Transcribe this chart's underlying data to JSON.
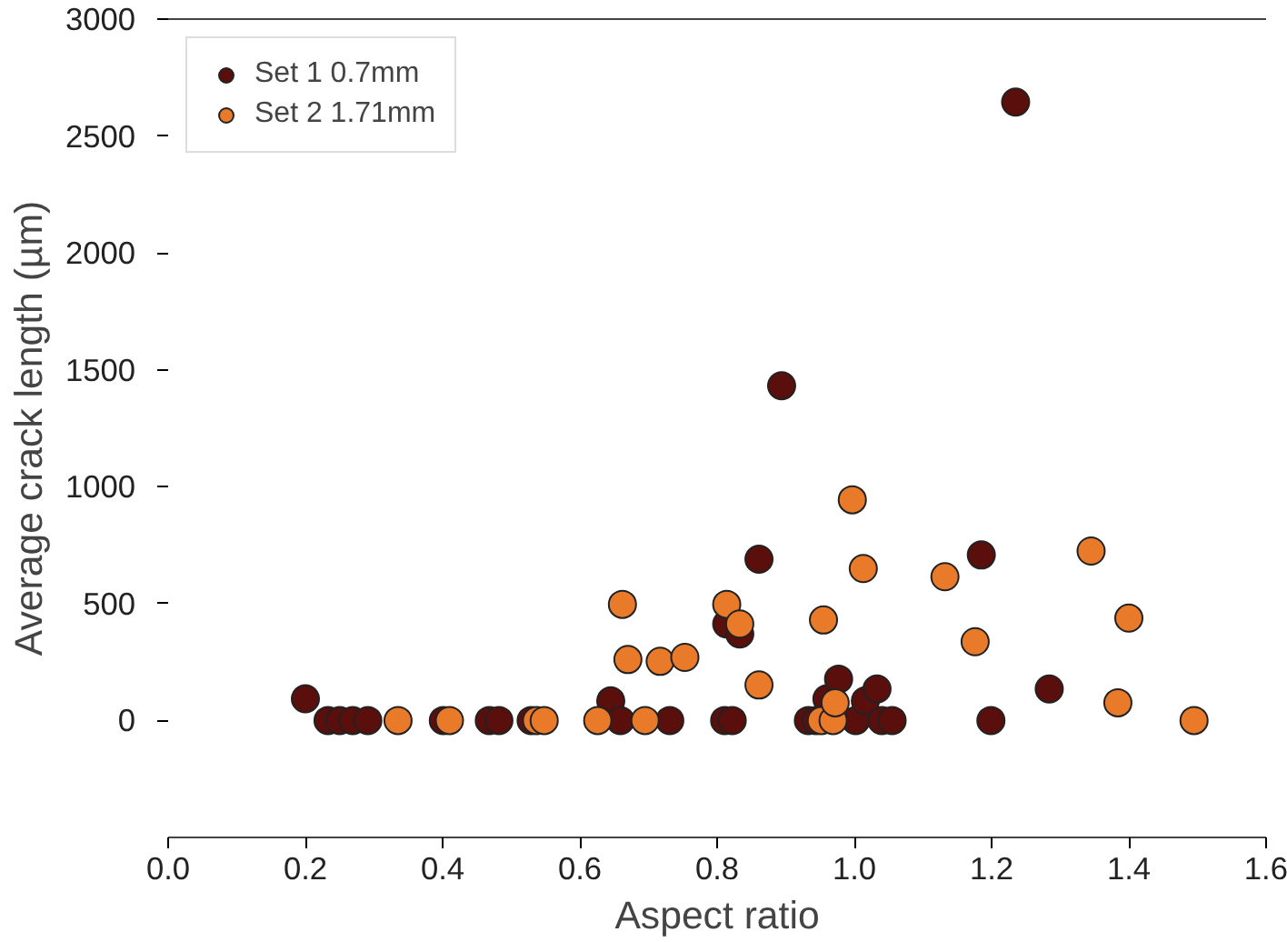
{
  "chart_data": {
    "type": "scatter",
    "xlabel": "Aspect ratio",
    "ylabel": "Average crack length (µm)",
    "xlim": [
      0,
      1.6
    ],
    "ylim": [
      -500,
      3000
    ],
    "xticks": [
      {
        "value": 0,
        "label": "0.0"
      },
      0.2,
      0.4,
      0.6,
      0.8,
      {
        "value": 1,
        "label": "1.0"
      },
      1.2,
      1.4,
      1.6
    ],
    "yticks": [
      0,
      500,
      1000,
      1500,
      2000,
      2500,
      3000
    ],
    "legend": "top left",
    "marker": "circle",
    "grid": false,
    "series": [
      {
        "name": "Set 1 0.7mm",
        "color": "#5a0f0c",
        "x": [
          0.2,
          0.233,
          0.25,
          0.269,
          0.291,
          0.401,
          0.468,
          0.482,
          0.529,
          0.645,
          0.659,
          0.731,
          0.811,
          0.822,
          0.861,
          0.894,
          0.814,
          0.833,
          0.933,
          0.944,
          0.96,
          0.977,
          1.002,
          1.016,
          1.033,
          1.04,
          1.055,
          1.185,
          1.199,
          1.235,
          1.284
        ],
        "values": [
          93,
          0,
          0,
          0,
          0,
          0,
          0,
          0,
          0,
          84,
          0,
          0,
          0,
          0,
          690,
          1432,
          413,
          370,
          0,
          0,
          93,
          177,
          0,
          84,
          135,
          0,
          0,
          708,
          0,
          2645,
          135
        ]
      },
      {
        "name": "Set 2 1.71mm",
        "color": "#e87a2a",
        "x": [
          0.335,
          0.41,
          0.537,
          0.548,
          0.626,
          0.662,
          0.67,
          0.695,
          0.717,
          0.753,
          0.814,
          0.833,
          0.861,
          0.952,
          0.955,
          0.969,
          0.972,
          0.997,
          1.013,
          1.132,
          1.176,
          1.345,
          1.384,
          1.4,
          1.495
        ],
        "values": [
          0,
          0,
          0,
          0,
          0,
          497,
          261,
          0,
          253,
          270,
          497,
          413,
          152,
          0,
          430,
          0,
          76,
          944,
          650,
          615,
          337,
          725,
          76,
          438,
          0
        ]
      }
    ]
  }
}
